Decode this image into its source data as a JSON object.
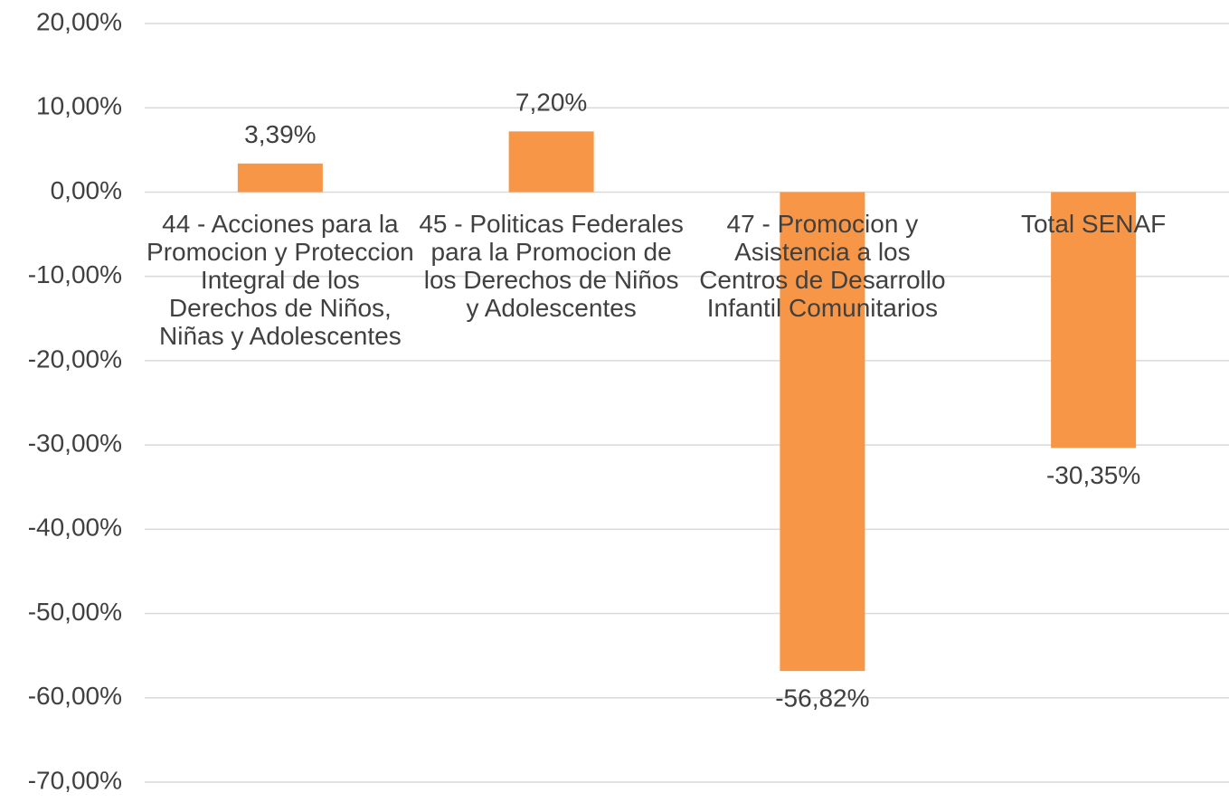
{
  "chart_data": {
    "type": "bar",
    "categories": [
      "44 - Acciones para la Promocion y Proteccion Integral de los Derechos de Niños, Niñas y Adolescentes",
      "45 - Politicas Federales para la Promocion de los Derechos de Niños y Adolescentes",
      "47 - Promocion y Asistencia a los Centros de Desarrollo Infantil Comunitarios",
      "Total SENAF"
    ],
    "values": [
      3.39,
      7.2,
      -56.82,
      -30.35
    ],
    "value_labels": [
      "3,39%",
      "7,20%",
      "-56,82%",
      "-30,35%"
    ],
    "color": "#f79646",
    "ylim": [
      -70,
      20
    ],
    "yticks": [
      {
        "value": 20,
        "label": "20,00%"
      },
      {
        "value": 10,
        "label": "10,00%"
      },
      {
        "value": 0,
        "label": "0,00%"
      },
      {
        "value": -10,
        "label": "-10,00%"
      },
      {
        "value": -20,
        "label": "-20,00%"
      },
      {
        "value": -30,
        "label": "-30,00%"
      },
      {
        "value": -40,
        "label": "-40,00%"
      },
      {
        "value": -50,
        "label": "-50,00%"
      },
      {
        "value": -60,
        "label": "-60,00%"
      },
      {
        "value": -70,
        "label": "-70,00%"
      }
    ],
    "grid": true
  }
}
